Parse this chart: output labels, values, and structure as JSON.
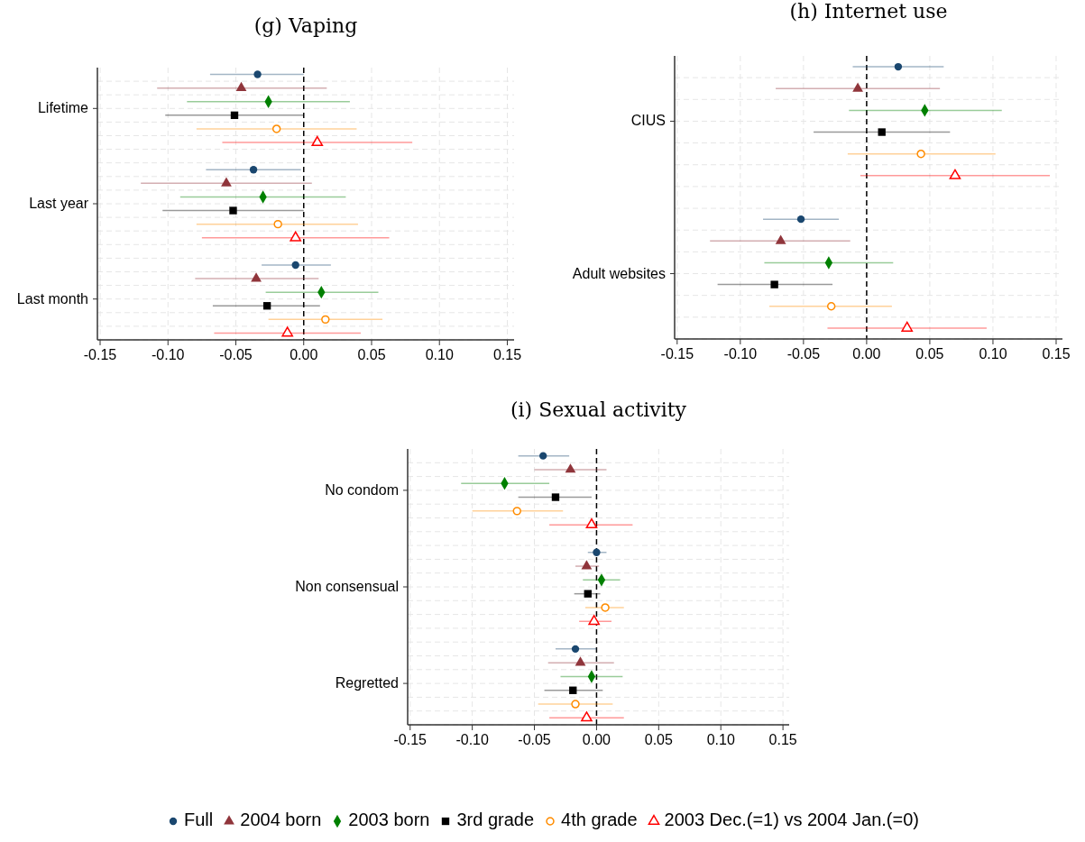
{
  "chart_data": [
    {
      "type": "scatter",
      "title": "(g) Vaping",
      "orientation": "horizontal",
      "categories": [
        "Lifetime",
        "Last year",
        "Last month"
      ],
      "xlim": [
        -0.152,
        0.155
      ],
      "xticks": [
        {
          "value": -0.15,
          "label": "-0.15"
        },
        {
          "value": -0.1,
          "label": "-0.10"
        },
        {
          "value": -0.05,
          "label": "-0.05"
        },
        {
          "value": 0,
          "label": "0.00"
        },
        {
          "value": 0.05,
          "label": "0.05"
        },
        {
          "value": 0.1,
          "label": "0.10"
        },
        {
          "value": 0.15,
          "label": "0.15"
        }
      ],
      "grid": true,
      "legend": "bottom",
      "ref_lines": [
        {
          "axis": "x",
          "value": 0,
          "line_style": "dashed",
          "color": "#000000"
        }
      ],
      "series": [
        {
          "name": "Full",
          "color": "#1a476f",
          "marker": "circle",
          "values": [
            -0.034,
            -0.037,
            -0.006
          ],
          "errors": [
            [
              -0.069,
              0.0
            ],
            [
              -0.072,
              -0.002
            ],
            [
              -0.031,
              0.02
            ]
          ]
        },
        {
          "name": "2004 born",
          "color": "#90353b",
          "marker": "triangle",
          "values": [
            -0.046,
            -0.057,
            -0.035
          ],
          "errors": [
            [
              -0.108,
              0.017
            ],
            [
              -0.12,
              0.006
            ],
            [
              -0.08,
              0.011
            ]
          ]
        },
        {
          "name": "2003 born",
          "color": "#008000",
          "marker": "diamond",
          "values": [
            -0.026,
            -0.03,
            0.013
          ],
          "errors": [
            [
              -0.086,
              0.034
            ],
            [
              -0.091,
              0.031
            ],
            [
              -0.028,
              0.055
            ]
          ]
        },
        {
          "name": "3rd grade",
          "color": "#000000",
          "marker": "square",
          "values": [
            -0.051,
            -0.052,
            -0.027
          ],
          "errors": [
            [
              -0.102,
              0.0
            ],
            [
              -0.104,
              0.0
            ],
            [
              -0.067,
              0.012
            ]
          ]
        },
        {
          "name": "4th grade",
          "color": "#ff8c00",
          "marker": "circle-open",
          "values": [
            -0.02,
            -0.019,
            0.016
          ],
          "errors": [
            [
              -0.079,
              0.039
            ],
            [
              -0.079,
              0.04
            ],
            [
              -0.026,
              0.058
            ]
          ]
        },
        {
          "name": "2003 Dec.(=1) vs 2004 Jan.(=0)",
          "color": "#ff0000",
          "marker": "triangle-open",
          "values": [
            0.01,
            -0.006,
            -0.012
          ],
          "errors": [
            [
              -0.06,
              0.08
            ],
            [
              -0.075,
              0.063
            ],
            [
              -0.066,
              0.042
            ]
          ]
        }
      ]
    },
    {
      "type": "scatter",
      "title": "(h) Internet use",
      "orientation": "horizontal",
      "categories": [
        "CIUS",
        "Adult websites"
      ],
      "xlim": [
        -0.152,
        0.155
      ],
      "xticks": [
        {
          "value": -0.15,
          "label": "-0.15"
        },
        {
          "value": -0.1,
          "label": "-0.10"
        },
        {
          "value": -0.05,
          "label": "-0.05"
        },
        {
          "value": 0,
          "label": "0.00"
        },
        {
          "value": 0.05,
          "label": "0.05"
        },
        {
          "value": 0.1,
          "label": "0.10"
        },
        {
          "value": 0.15,
          "label": "0.15"
        }
      ],
      "grid": true,
      "ref_lines": [
        {
          "axis": "x",
          "value": 0,
          "line_style": "dashed",
          "color": "#000000"
        }
      ],
      "series": [
        {
          "color": "#1a476f",
          "marker": "circle",
          "values": [
            0.025,
            -0.052
          ],
          "errors": [
            [
              -0.011,
              0.061
            ],
            [
              -0.082,
              -0.022
            ]
          ]
        },
        {
          "color": "#90353b",
          "marker": "triangle",
          "values": [
            -0.007,
            -0.068
          ],
          "errors": [
            [
              -0.072,
              0.058
            ],
            [
              -0.124,
              -0.013
            ]
          ]
        },
        {
          "color": "#008000",
          "marker": "diamond",
          "values": [
            0.046,
            -0.03
          ],
          "errors": [
            [
              -0.014,
              0.107
            ],
            [
              -0.081,
              0.021
            ]
          ]
        },
        {
          "color": "#000000",
          "marker": "square",
          "values": [
            0.012,
            -0.073
          ],
          "errors": [
            [
              -0.042,
              0.066
            ],
            [
              -0.118,
              -0.027
            ]
          ]
        },
        {
          "color": "#ff8c00",
          "marker": "circle-open",
          "values": [
            0.043,
            -0.028
          ],
          "errors": [
            [
              -0.015,
              0.102
            ],
            [
              -0.077,
              0.02
            ]
          ]
        },
        {
          "color": "#ff0000",
          "marker": "triangle-open",
          "values": [
            0.07,
            0.032
          ],
          "errors": [
            [
              -0.005,
              0.145
            ],
            [
              -0.031,
              0.095
            ]
          ]
        }
      ]
    },
    {
      "type": "scatter",
      "title": "(i) Sexual activity",
      "orientation": "horizontal",
      "categories": [
        "No condom",
        "Non consensual",
        "Regretted"
      ],
      "xlim": [
        -0.152,
        0.155
      ],
      "xticks": [
        {
          "value": -0.15,
          "label": "-0.15"
        },
        {
          "value": -0.1,
          "label": "-0.10"
        },
        {
          "value": -0.05,
          "label": "-0.05"
        },
        {
          "value": 0,
          "label": "0.00"
        },
        {
          "value": 0.05,
          "label": "0.05"
        },
        {
          "value": 0.1,
          "label": "0.10"
        },
        {
          "value": 0.15,
          "label": "0.15"
        }
      ],
      "grid": true,
      "ref_lines": [
        {
          "axis": "x",
          "value": 0,
          "line_style": "dashed",
          "color": "#000000"
        }
      ],
      "series": [
        {
          "color": "#1a476f",
          "marker": "circle",
          "values": [
            -0.043,
            0.0,
            -0.017
          ],
          "errors": [
            [
              -0.063,
              -0.022
            ],
            [
              -0.007,
              0.008
            ],
            [
              -0.033,
              0.0
            ]
          ]
        },
        {
          "color": "#90353b",
          "marker": "triangle",
          "values": [
            -0.021,
            -0.008,
            -0.013
          ],
          "errors": [
            [
              -0.05,
              0.008
            ],
            [
              -0.017,
              0.002
            ],
            [
              -0.039,
              0.014
            ]
          ]
        },
        {
          "color": "#008000",
          "marker": "diamond",
          "values": [
            -0.074,
            0.004,
            -0.004
          ],
          "errors": [
            [
              -0.109,
              -0.038
            ],
            [
              -0.011,
              0.019
            ],
            [
              -0.029,
              0.021
            ]
          ]
        },
        {
          "color": "#000000",
          "marker": "square",
          "values": [
            -0.033,
            -0.007,
            -0.019
          ],
          "errors": [
            [
              -0.063,
              -0.004
            ],
            [
              -0.018,
              0.003
            ],
            [
              -0.042,
              0.005
            ]
          ]
        },
        {
          "color": "#ff8c00",
          "marker": "circle-open",
          "values": [
            -0.064,
            0.007,
            -0.017
          ],
          "errors": [
            [
              -0.1,
              -0.027
            ],
            [
              -0.009,
              0.022
            ],
            [
              -0.047,
              0.013
            ]
          ]
        },
        {
          "color": "#ff0000",
          "marker": "triangle-open",
          "values": [
            -0.004,
            -0.002,
            -0.008
          ],
          "errors": [
            [
              -0.038,
              0.029
            ],
            [
              -0.014,
              0.012
            ],
            [
              -0.038,
              0.022
            ]
          ]
        }
      ]
    }
  ]
}
